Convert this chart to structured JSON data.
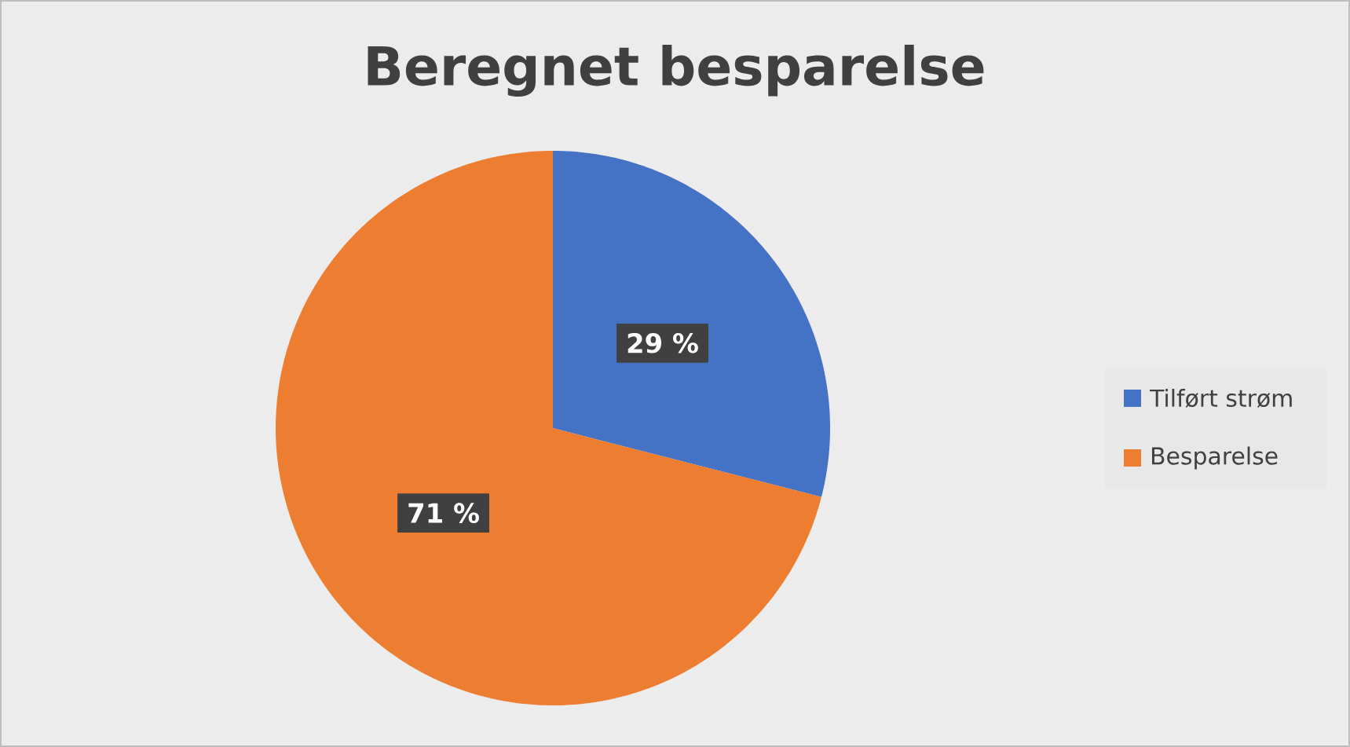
{
  "chart_data": {
    "type": "pie",
    "title": "Beregnet besparelse",
    "categories": [
      "Tilført strøm",
      "Besparelse"
    ],
    "values": [
      29,
      71
    ],
    "colors": [
      "#4472c4",
      "#ed7d31"
    ],
    "value_labels": [
      "29 %",
      "71 %"
    ],
    "legend": "right"
  }
}
